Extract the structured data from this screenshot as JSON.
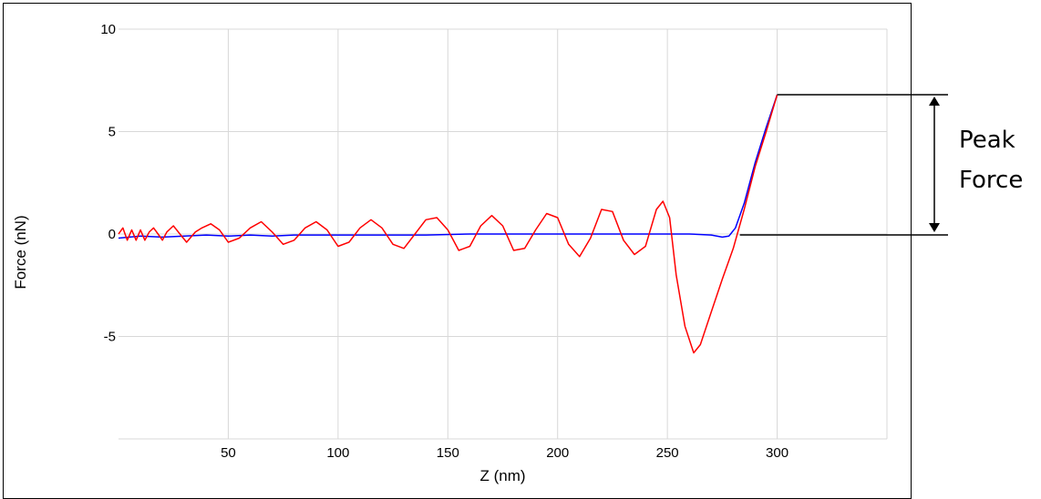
{
  "chart_data": {
    "type": "line",
    "xlabel": "Z (nm)",
    "ylabel": "Force (nN)",
    "xlim": [
      0,
      350
    ],
    "ylim": [
      -10,
      10
    ],
    "x_ticks": [
      50,
      100,
      150,
      200,
      250,
      300
    ],
    "y_ticks": [
      10,
      5,
      0,
      -5
    ],
    "grid": true,
    "series": [
      {
        "color": "#0000ff",
        "points": [
          [
            0,
            -0.2
          ],
          [
            10,
            -0.1
          ],
          [
            20,
            -0.15
          ],
          [
            30,
            -0.1
          ],
          [
            40,
            -0.05
          ],
          [
            50,
            -0.1
          ],
          [
            60,
            -0.05
          ],
          [
            70,
            -0.1
          ],
          [
            80,
            -0.05
          ],
          [
            100,
            -0.05
          ],
          [
            120,
            -0.05
          ],
          [
            140,
            -0.05
          ],
          [
            160,
            0
          ],
          [
            180,
            0
          ],
          [
            200,
            0
          ],
          [
            220,
            0
          ],
          [
            240,
            0
          ],
          [
            260,
            0
          ],
          [
            270,
            -0.05
          ],
          [
            275,
            -0.15
          ],
          [
            278,
            -0.1
          ],
          [
            281,
            0.3
          ],
          [
            285,
            1.5
          ],
          [
            290,
            3.5
          ],
          [
            295,
            5.2
          ],
          [
            300,
            6.8
          ]
        ]
      },
      {
        "color": "#ff0000",
        "points": [
          [
            0,
            0
          ],
          [
            2,
            0.3
          ],
          [
            4,
            -0.3
          ],
          [
            6,
            0.2
          ],
          [
            8,
            -0.3
          ],
          [
            10,
            0.2
          ],
          [
            12,
            -0.3
          ],
          [
            14,
            0.1
          ],
          [
            16,
            0.3
          ],
          [
            18,
            0
          ],
          [
            20,
            -0.3
          ],
          [
            22,
            0.1
          ],
          [
            25,
            0.4
          ],
          [
            28,
            0
          ],
          [
            31,
            -0.4
          ],
          [
            35,
            0.1
          ],
          [
            38,
            0.3
          ],
          [
            42,
            0.5
          ],
          [
            46,
            0.2
          ],
          [
            50,
            -0.4
          ],
          [
            55,
            -0.2
          ],
          [
            60,
            0.3
          ],
          [
            65,
            0.6
          ],
          [
            70,
            0.1
          ],
          [
            75,
            -0.5
          ],
          [
            80,
            -0.3
          ],
          [
            85,
            0.3
          ],
          [
            90,
            0.6
          ],
          [
            95,
            0.2
          ],
          [
            100,
            -0.6
          ],
          [
            105,
            -0.4
          ],
          [
            110,
            0.3
          ],
          [
            115,
            0.7
          ],
          [
            120,
            0.3
          ],
          [
            125,
            -0.5
          ],
          [
            130,
            -0.7
          ],
          [
            135,
            0
          ],
          [
            140,
            0.7
          ],
          [
            145,
            0.8
          ],
          [
            150,
            0.2
          ],
          [
            155,
            -0.8
          ],
          [
            160,
            -0.6
          ],
          [
            165,
            0.4
          ],
          [
            170,
            0.9
          ],
          [
            175,
            0.4
          ],
          [
            180,
            -0.8
          ],
          [
            185,
            -0.7
          ],
          [
            190,
            0.2
          ],
          [
            195,
            1.0
          ],
          [
            200,
            0.8
          ],
          [
            205,
            -0.5
          ],
          [
            210,
            -1.1
          ],
          [
            215,
            -0.2
          ],
          [
            220,
            1.2
          ],
          [
            225,
            1.1
          ],
          [
            230,
            -0.3
          ],
          [
            235,
            -1.0
          ],
          [
            240,
            -0.6
          ],
          [
            245,
            1.2
          ],
          [
            248,
            1.6
          ],
          [
            251,
            0.8
          ],
          [
            254,
            -2.0
          ],
          [
            258,
            -4.5
          ],
          [
            262,
            -5.8
          ],
          [
            265,
            -5.4
          ],
          [
            270,
            -3.8
          ],
          [
            275,
            -2.2
          ],
          [
            280,
            -0.7
          ],
          [
            285,
            1.2
          ],
          [
            290,
            3.3
          ],
          [
            295,
            5.0
          ],
          [
            300,
            6.8
          ]
        ]
      }
    ],
    "annotation": {
      "label_line1": "Peak",
      "label_line2": "Force",
      "top_value": 6.8,
      "bottom_value": 0
    }
  }
}
